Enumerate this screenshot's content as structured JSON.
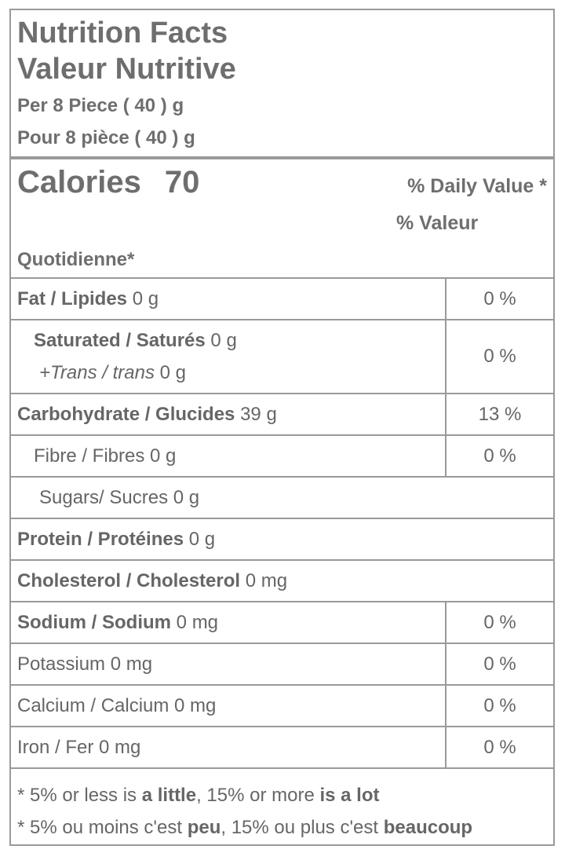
{
  "header": {
    "title_en": "Nutrition Facts",
    "title_fr": "Valeur Nutritive",
    "serving_en": "Per 8 Piece ( 40 ) g",
    "serving_fr": "Pour 8 pièce ( 40 ) g"
  },
  "calories": {
    "label": "Calories",
    "value": "70",
    "dv_line1": "% Daily Value *",
    "dv_line2": "% Valeur",
    "dv_line3": "Quotidienne*"
  },
  "nutrients": {
    "fat": {
      "label": "Fat / Lipides",
      "amount": "0 g",
      "dv": "0 %"
    },
    "saturated": {
      "label": "Saturated / Saturés",
      "amount": "0 g",
      "dv": "0 %"
    },
    "trans": {
      "label": "+Trans / trans",
      "amount": "0 g"
    },
    "carbohydrate": {
      "label": "Carbohydrate / Glucides",
      "amount": "39 g",
      "dv": "13 %"
    },
    "fibre": {
      "label": "Fibre / Fibres 0 g",
      "dv": "0 %"
    },
    "sugars": {
      "label": "Sugars/ Sucres 0 g"
    },
    "protein": {
      "label": "Protein / Protéines",
      "amount": "0 g"
    },
    "cholesterol": {
      "label": "Cholesterol / Cholesterol",
      "amount": "0 mg"
    },
    "sodium": {
      "label": "Sodium / Sodium",
      "amount": "0 mg",
      "dv": "0 %"
    },
    "potassium": {
      "label": "Potassium 0 mg",
      "dv": "0 %"
    },
    "calcium": {
      "label": "Calcium / Calcium 0 mg",
      "dv": "0 %"
    },
    "iron": {
      "label": "Iron / Fer 0 mg",
      "dv": "0 %"
    }
  },
  "footnote": {
    "en_pre": "* 5% or less is ",
    "en_little": "a little",
    "en_mid": ", 15% or more ",
    "en_lot": "is a lot",
    "fr_pre": "* 5% ou moins c'est ",
    "fr_little": "peu",
    "fr_mid": ", 15% ou plus c'est ",
    "fr_lot": "beaucoup"
  }
}
